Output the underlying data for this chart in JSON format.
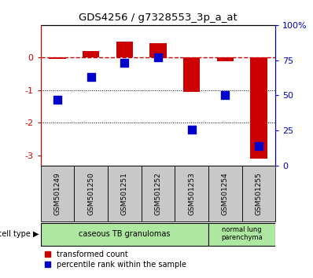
{
  "title": "GDS4256 / g7328553_3p_a_at",
  "samples": [
    "GSM501249",
    "GSM501250",
    "GSM501251",
    "GSM501252",
    "GSM501253",
    "GSM501254",
    "GSM501255"
  ],
  "red_bars": [
    -0.05,
    0.2,
    0.5,
    0.45,
    -1.05,
    -0.1,
    -3.1
  ],
  "blue_squares_left": [
    -1.3,
    -0.6,
    -0.15,
    0.0,
    -2.2,
    -1.15,
    -2.7
  ],
  "ylim_left": [
    -3.3,
    1.0
  ],
  "ylim_right": [
    0,
    100
  ],
  "left_yticks": [
    -3,
    -2,
    -1,
    0
  ],
  "right_yticks": [
    0,
    25,
    50,
    75,
    100
  ],
  "cell_type_label": "cell type",
  "legend_red": "transformed count",
  "legend_blue": "percentile rank within the sample",
  "red_color": "#cc0000",
  "blue_color": "#0000cc",
  "bar_width": 0.5,
  "blue_marker_size": 55,
  "gray_bg": "#c8c8c8",
  "green_bg": "#aee8a0"
}
